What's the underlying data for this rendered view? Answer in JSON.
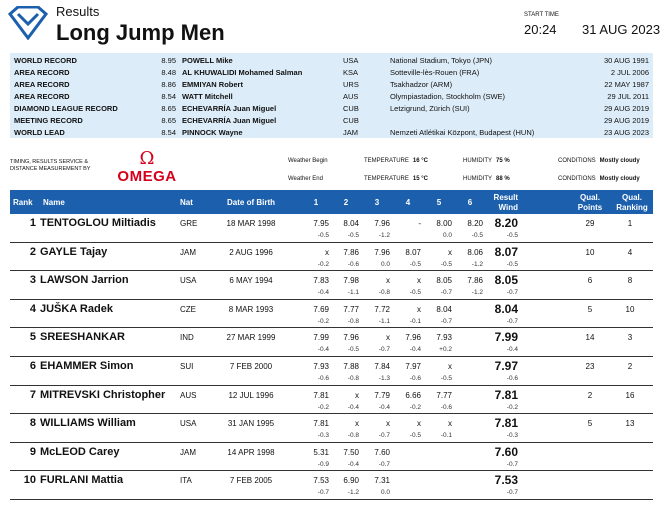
{
  "header": {
    "subtitle": "Results",
    "title": "Long Jump Men",
    "start_time_label": "START TIME",
    "start_time": "20:24",
    "date": "31 AUG 2023"
  },
  "colors": {
    "accent": "#1c5fad",
    "records_bg": "#dcecf8",
    "omega_red": "#d6001c"
  },
  "records": [
    {
      "type": "WORLD RECORD",
      "value": "8.95",
      "name": "POWELL Mike",
      "nat": "USA",
      "place": "National Stadium, Tokyo (JPN)",
      "date": "30 AUG 1991"
    },
    {
      "type": "AREA RECORD",
      "value": "8.48",
      "name": "AL KHUWALIDI Mohamed Salman",
      "nat": "KSA",
      "place": "Sotteville-lès-Rouen (FRA)",
      "date": "2 JUL 2006"
    },
    {
      "type": "AREA RECORD",
      "value": "8.86",
      "name": "EMMIYAN Robert",
      "nat": "URS",
      "place": "Tsakhadzor (ARM)",
      "date": "22 MAY 1987"
    },
    {
      "type": "AREA RECORD",
      "value": "8.54",
      "name": "WATT Mitchell",
      "nat": "AUS",
      "place": "Olympiastadion, Stockholm (SWE)",
      "date": "29 JUL 2011"
    },
    {
      "type": "DIAMOND LEAGUE RECORD",
      "value": "8.65",
      "name": "ECHEVARRÍA Juan Miguel",
      "nat": "CUB",
      "place": "Letzigrund, Zürich (SUI)",
      "date": "29 AUG 2019"
    },
    {
      "type": "MEETING RECORD",
      "value": "8.65",
      "name": "ECHEVARRÍA Juan Miguel",
      "nat": "CUB",
      "place": "",
      "date": "29 AUG 2019"
    },
    {
      "type": "WORLD LEAD",
      "value": "8.54",
      "name": "PINNOCK Wayne",
      "nat": "JAM",
      "place": "Nemzeti Atlétikai Központ, Budapest (HUN)",
      "date": "23 AUG 2023"
    }
  ],
  "sponsor": {
    "line1": "TIMING, RESULTS SERVICE &",
    "line2": "DISTANCE MEASUREMENT BY",
    "logo": "OMEGA",
    "logo_symbol": "Ω"
  },
  "weather": {
    "begin": {
      "label": "Weather Begin",
      "temp_label": "TEMPERATURE",
      "temp": "16 °C",
      "hum_label": "HUMIDITY",
      "hum": "75 %",
      "cond_label": "CONDITIONS",
      "cond": "Mostly cloudy"
    },
    "end": {
      "label": "Weather End",
      "temp_label": "TEMPERATURE",
      "temp": "15 °C",
      "hum_label": "HUMIDITY",
      "hum": "88 %",
      "cond_label": "CONDITIONS",
      "cond": "Mostly cloudy"
    }
  },
  "table": {
    "headers": {
      "rank": "Rank",
      "name": "Name",
      "nat": "Nat",
      "dob": "Date of Birth",
      "a1": "1",
      "a2": "2",
      "a3": "3",
      "a4": "4",
      "a5": "5",
      "a6": "6",
      "result": "Result",
      "wind": "Wind",
      "qp1": "Qual.",
      "qp2": "Points",
      "qr1": "Qual.",
      "qr2": "Ranking"
    },
    "rows": [
      {
        "rank": "1",
        "name": "TENTOGLOU Miltiadis",
        "nat": "GRE",
        "dob": "18 MAR 1998",
        "attempts": [
          "7.95",
          "8.04",
          "7.96",
          "-",
          "8.00",
          "8.20"
        ],
        "winds": [
          "-0.5",
          "-0.5",
          "-1.2",
          "",
          "0.0",
          "-0.5"
        ],
        "result": "8.20",
        "wind": "-0.5",
        "qual_points": "29",
        "qual_ranking": "1"
      },
      {
        "rank": "2",
        "name": "GAYLE Tajay",
        "nat": "JAM",
        "dob": "2 AUG 1996",
        "attempts": [
          "x",
          "7.86",
          "7.96",
          "8.07",
          "x",
          "8.06"
        ],
        "winds": [
          "-0.2",
          "-0.6",
          "0.0",
          "-0.5",
          "-0.5",
          "-1.2"
        ],
        "result": "8.07",
        "wind": "-0.5",
        "qual_points": "10",
        "qual_ranking": "4"
      },
      {
        "rank": "3",
        "name": "LAWSON Jarrion",
        "nat": "USA",
        "dob": "6 MAY 1994",
        "attempts": [
          "7.83",
          "7.98",
          "x",
          "x",
          "8.05",
          "7.86"
        ],
        "winds": [
          "-0.4",
          "-1.1",
          "-0.8",
          "-0.5",
          "-0.7",
          "-1.2"
        ],
        "result": "8.05",
        "wind": "-0.7",
        "qual_points": "6",
        "qual_ranking": "8"
      },
      {
        "rank": "4",
        "name": "JUŠKA Radek",
        "nat": "CZE",
        "dob": "8 MAR 1993",
        "attempts": [
          "7.69",
          "7.77",
          "7.72",
          "x",
          "8.04",
          ""
        ],
        "winds": [
          "-0.2",
          "-0.8",
          "-1.1",
          "-0.1",
          "-0.7",
          ""
        ],
        "result": "8.04",
        "wind": "-0.7",
        "qual_points": "5",
        "qual_ranking": "10"
      },
      {
        "rank": "5",
        "name": "SREESHANKAR",
        "nat": "IND",
        "dob": "27 MAR 1999",
        "attempts": [
          "7.99",
          "7.96",
          "x",
          "7.96",
          "7.93",
          ""
        ],
        "winds": [
          "-0.4",
          "-0.5",
          "-0.7",
          "-0.4",
          "+0.2",
          ""
        ],
        "result": "7.99",
        "wind": "-0.4",
        "qual_points": "14",
        "qual_ranking": "3"
      },
      {
        "rank": "6",
        "name": "EHAMMER Simon",
        "nat": "SUI",
        "dob": "7 FEB 2000",
        "attempts": [
          "7.93",
          "7.88",
          "7.84",
          "7.97",
          "x",
          ""
        ],
        "winds": [
          "-0.6",
          "-0.8",
          "-1.3",
          "-0.6",
          "-0.5",
          ""
        ],
        "result": "7.97",
        "wind": "-0.6",
        "qual_points": "23",
        "qual_ranking": "2"
      },
      {
        "rank": "7",
        "name": "MITREVSKI Christopher",
        "nat": "AUS",
        "dob": "12 JUL 1996",
        "attempts": [
          "7.81",
          "x",
          "7.79",
          "6.66",
          "7.77",
          ""
        ],
        "winds": [
          "-0.2",
          "-0.4",
          "-0.4",
          "-0.2",
          "-0.6",
          ""
        ],
        "result": "7.81",
        "wind": "-0.2",
        "qual_points": "2",
        "qual_ranking": "16"
      },
      {
        "rank": "8",
        "name": "WILLIAMS William",
        "nat": "USA",
        "dob": "31 JAN 1995",
        "attempts": [
          "7.81",
          "x",
          "x",
          "x",
          "x",
          ""
        ],
        "winds": [
          "-0.3",
          "-0.8",
          "-0.7",
          "-0.5",
          "-0.1",
          ""
        ],
        "result": "7.81",
        "wind": "-0.3",
        "qual_points": "5",
        "qual_ranking": "13"
      },
      {
        "rank": "9",
        "name": "McLEOD Carey",
        "nat": "JAM",
        "dob": "14 APR 1998",
        "attempts": [
          "5.31",
          "7.50",
          "7.60",
          "",
          "",
          ""
        ],
        "winds": [
          "-0.9",
          "-0.4",
          "-0.7",
          "",
          "",
          ""
        ],
        "result": "7.60",
        "wind": "-0.7",
        "qual_points": "",
        "qual_ranking": ""
      },
      {
        "rank": "10",
        "name": "FURLANI Mattia",
        "nat": "ITA",
        "dob": "7 FEB 2005",
        "attempts": [
          "7.53",
          "6.90",
          "7.31",
          "",
          "",
          ""
        ],
        "winds": [
          "-0.7",
          "-1.2",
          "0.0",
          "",
          "",
          ""
        ],
        "result": "7.53",
        "wind": "-0.7",
        "qual_points": "",
        "qual_ranking": ""
      }
    ]
  }
}
